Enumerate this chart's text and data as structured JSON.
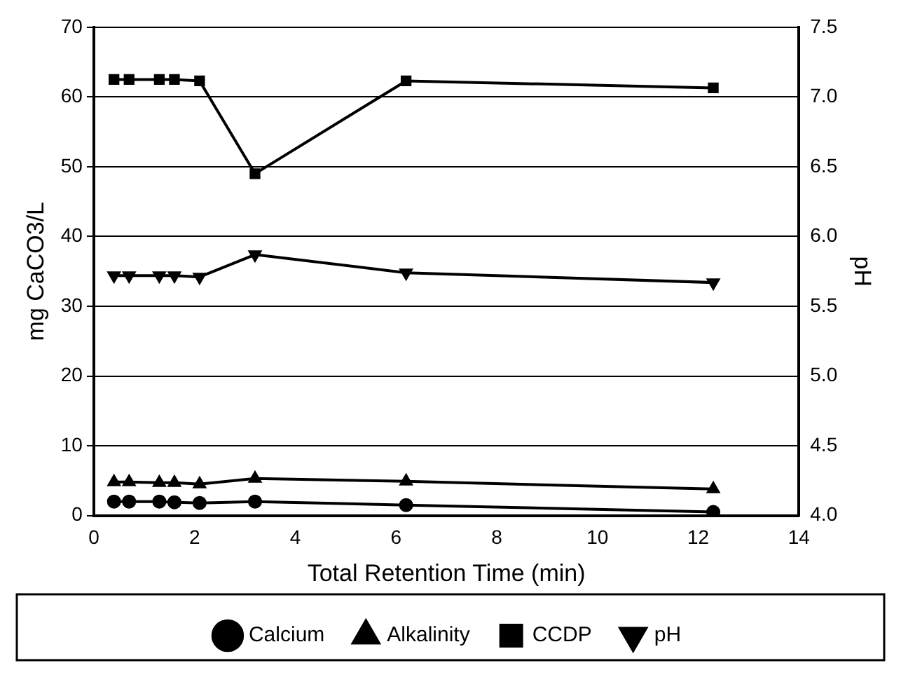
{
  "chart_data": {
    "type": "line",
    "xlabel": "Total Retention Time (min)",
    "ylabel": "mg CaCO3/L",
    "y2label": "pH",
    "x": [
      0.4,
      0.7,
      1.3,
      1.6,
      2.1,
      3.2,
      6.2,
      12.3
    ],
    "series": [
      {
        "name": "Calcium",
        "color": "#000000",
        "marker": "circle",
        "values": [
          2,
          2,
          2,
          1.9,
          1.8,
          2,
          1.5,
          0.5
        ]
      },
      {
        "name": "Alkalinity",
        "color": "#000000",
        "marker": "triangle",
        "values": [
          4.8,
          4.8,
          4.7,
          4.7,
          4.5,
          5.3,
          4.9,
          3.8
        ]
      },
      {
        "name": "CCDP",
        "color": "#000000",
        "marker": "square",
        "values": [
          62.5,
          62.5,
          62.5,
          62.5,
          62.3,
          49,
          62.3,
          61.3
        ]
      },
      {
        "name": "pH",
        "color": "#000000",
        "marker": "triangle-down",
        "axis": "y2",
        "values": [
          5.72,
          5.72,
          5.72,
          5.72,
          5.71,
          5.87,
          5.74,
          5.67
        ]
      }
    ],
    "xlim": [
      0,
      14
    ],
    "xticks": [
      0,
      2,
      4,
      6,
      8,
      10,
      12,
      14
    ],
    "ylim": [
      0,
      70
    ],
    "yticks": [
      0,
      10,
      20,
      30,
      40,
      50,
      60,
      70
    ],
    "y2lim": [
      4.0,
      7.5
    ],
    "y2ticks": [
      {
        "value": 4,
        "label": "4.0"
      },
      4.5,
      {
        "value": 5,
        "label": "5.0"
      },
      5.5,
      {
        "value": 6,
        "label": "6.0"
      },
      6.5,
      {
        "value": 7,
        "label": "7.0"
      },
      7.5
    ],
    "grid": "y",
    "legend": "bottom",
    "line_style": "solid"
  }
}
